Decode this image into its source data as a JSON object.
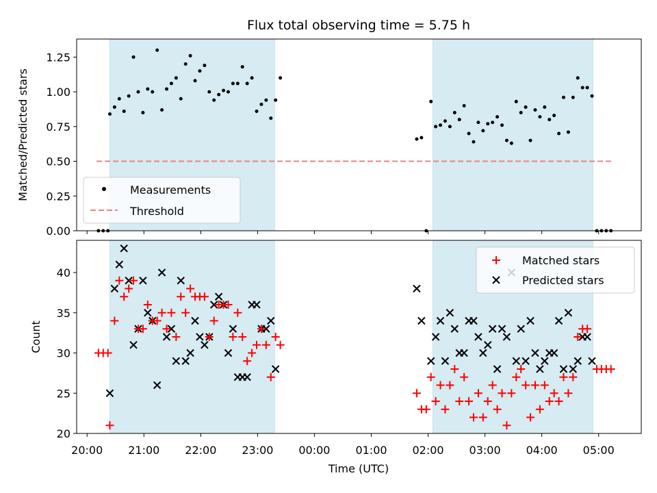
{
  "chart_data": [
    {
      "type": "scatter",
      "title": "Flux total observing time = 5.75 h",
      "xlabel": "",
      "ylabel": "Matched/Predicted stars",
      "xlim": [
        "19:49",
        "05:45"
      ],
      "ylim": [
        0,
        1.38
      ],
      "yticks": [
        "0.00",
        "0.25",
        "0.50",
        "0.75",
        "1.00",
        "1.25"
      ],
      "shaded_spans": [
        [
          "20:24",
          "23:18"
        ],
        [
          "02:05",
          "04:54"
        ]
      ],
      "threshold": {
        "y": 0.5,
        "x_start": "20:10",
        "x_end": "05:15",
        "color": "#f08080"
      },
      "legend": {
        "position": "lower-left",
        "entries": [
          "Measurements",
          "Threshold"
        ]
      },
      "series": [
        {
          "name": "Measurements",
          "color": "#000000",
          "points": [
            [
              "20:12",
              0
            ],
            [
              "20:17",
              0
            ],
            [
              "20:22",
              0
            ],
            [
              "20:24",
              0.84
            ],
            [
              "20:29",
              0.89
            ],
            [
              "20:34",
              0.95
            ],
            [
              "20:39",
              0.86
            ],
            [
              "20:44",
              0.97
            ],
            [
              "20:49",
              1.25
            ],
            [
              "20:54",
              1.0
            ],
            [
              "20:59",
              0.85
            ],
            [
              "21:04",
              1.02
            ],
            [
              "21:09",
              1.0
            ],
            [
              "21:14",
              1.3
            ],
            [
              "21:19",
              0.87
            ],
            [
              "21:24",
              1.02
            ],
            [
              "21:29",
              1.06
            ],
            [
              "21:34",
              1.1
            ],
            [
              "21:39",
              0.95
            ],
            [
              "21:44",
              1.2
            ],
            [
              "21:49",
              1.26
            ],
            [
              "21:54",
              1.08
            ],
            [
              "21:59",
              1.15
            ],
            [
              "22:04",
              1.19
            ],
            [
              "22:09",
              1.0
            ],
            [
              "22:14",
              0.94
            ],
            [
              "22:19",
              0.98
            ],
            [
              "22:24",
              1.01
            ],
            [
              "22:29",
              1.0
            ],
            [
              "22:34",
              1.06
            ],
            [
              "22:39",
              1.06
            ],
            [
              "22:44",
              1.18
            ],
            [
              "22:49",
              1.06
            ],
            [
              "22:54",
              1.1
            ],
            [
              "22:59",
              0.86
            ],
            [
              "23:04",
              0.91
            ],
            [
              "23:09",
              0.94
            ],
            [
              "23:14",
              0.81
            ],
            [
              "23:19",
              0.94
            ],
            [
              "23:24",
              1.1
            ],
            [
              "01:48",
              0.66
            ],
            [
              "01:53",
              0.67
            ],
            [
              "01:58",
              0
            ],
            [
              "02:03",
              0.93
            ],
            [
              "02:08",
              0.75
            ],
            [
              "02:13",
              0.76
            ],
            [
              "02:18",
              0.79
            ],
            [
              "02:23",
              0.75
            ],
            [
              "02:28",
              0.85
            ],
            [
              "02:33",
              0.8
            ],
            [
              "02:38",
              0.9
            ],
            [
              "02:43",
              0.7
            ],
            [
              "02:48",
              0.64
            ],
            [
              "02:53",
              0.78
            ],
            [
              "02:58",
              0.72
            ],
            [
              "03:03",
              0.77
            ],
            [
              "03:08",
              0.78
            ],
            [
              "03:13",
              0.82
            ],
            [
              "03:18",
              0.76
            ],
            [
              "03:23",
              0.65
            ],
            [
              "03:28",
              0.63
            ],
            [
              "03:33",
              0.93
            ],
            [
              "03:38",
              0.85
            ],
            [
              "03:43",
              0.89
            ],
            [
              "03:48",
              0.65
            ],
            [
              "03:53",
              0.87
            ],
            [
              "03:58",
              0.82
            ],
            [
              "04:03",
              0.89
            ],
            [
              "04:08",
              0.8
            ],
            [
              "04:13",
              0.83
            ],
            [
              "04:18",
              0.7
            ],
            [
              "04:23",
              0.96
            ],
            [
              "04:28",
              0.71
            ],
            [
              "04:33",
              0.96
            ],
            [
              "04:38",
              1.1
            ],
            [
              "04:43",
              1.03
            ],
            [
              "04:48",
              1.03
            ],
            [
              "04:53",
              0.97
            ],
            [
              "04:58",
              0
            ],
            [
              "05:03",
              0
            ],
            [
              "05:08",
              0
            ],
            [
              "05:13",
              0
            ]
          ]
        }
      ]
    },
    {
      "type": "scatter",
      "title": "",
      "xlabel": "Time (UTC)",
      "ylabel": "Count",
      "xlim": [
        "19:49",
        "05:45"
      ],
      "ylim": [
        20,
        44
      ],
      "yticks": [
        "20",
        "25",
        "30",
        "35",
        "40"
      ],
      "xticks": [
        "20:00",
        "21:00",
        "22:00",
        "23:00",
        "00:00",
        "01:00",
        "02:00",
        "03:00",
        "04:00",
        "05:00"
      ],
      "shaded_spans": [
        [
          "20:24",
          "23:18"
        ],
        [
          "02:05",
          "04:54"
        ]
      ],
      "legend": {
        "position": "top-right",
        "entries": [
          "Matched stars",
          "Predicted stars"
        ]
      },
      "series": [
        {
          "name": "Matched stars",
          "marker": "+",
          "color": "#ff0000",
          "points": [
            [
              "20:12",
              30
            ],
            [
              "20:17",
              30
            ],
            [
              "20:22",
              30
            ],
            [
              "20:24",
              21
            ],
            [
              "20:29",
              34
            ],
            [
              "20:34",
              39
            ],
            [
              "20:39",
              37
            ],
            [
              "20:44",
              38
            ],
            [
              "20:49",
              39
            ],
            [
              "20:54",
              33
            ],
            [
              "20:59",
              33
            ],
            [
              "21:04",
              36
            ],
            [
              "21:09",
              34
            ],
            [
              "21:14",
              34
            ],
            [
              "21:19",
              35
            ],
            [
              "21:24",
              33
            ],
            [
              "21:29",
              35
            ],
            [
              "21:34",
              32
            ],
            [
              "21:39",
              37
            ],
            [
              "21:44",
              35
            ],
            [
              "21:49",
              38
            ],
            [
              "21:54",
              37
            ],
            [
              "21:59",
              37
            ],
            [
              "22:04",
              37
            ],
            [
              "22:09",
              32
            ],
            [
              "22:14",
              34
            ],
            [
              "22:19",
              36
            ],
            [
              "22:24",
              36
            ],
            [
              "22:29",
              36
            ],
            [
              "22:34",
              32
            ],
            [
              "22:39",
              35
            ],
            [
              "22:44",
              32
            ],
            [
              "22:49",
              29
            ],
            [
              "22:54",
              30
            ],
            [
              "22:59",
              31
            ],
            [
              "23:04",
              33
            ],
            [
              "23:09",
              31
            ],
            [
              "23:14",
              27
            ],
            [
              "23:19",
              32
            ],
            [
              "23:24",
              31
            ],
            [
              "01:48",
              25
            ],
            [
              "01:53",
              23
            ],
            [
              "01:58",
              23
            ],
            [
              "02:03",
              27
            ],
            [
              "02:08",
              24
            ],
            [
              "02:13",
              26
            ],
            [
              "02:18",
              23
            ],
            [
              "02:23",
              26
            ],
            [
              "02:28",
              28
            ],
            [
              "02:33",
              24
            ],
            [
              "02:38",
              27
            ],
            [
              "02:43",
              24
            ],
            [
              "02:48",
              22
            ],
            [
              "02:53",
              25
            ],
            [
              "02:58",
              22
            ],
            [
              "03:03",
              24
            ],
            [
              "03:08",
              26
            ],
            [
              "03:13",
              23
            ],
            [
              "03:18",
              25
            ],
            [
              "03:23",
              21
            ],
            [
              "03:28",
              25
            ],
            [
              "03:33",
              27
            ],
            [
              "03:38",
              28
            ],
            [
              "03:43",
              26
            ],
            [
              "03:48",
              22
            ],
            [
              "03:53",
              26
            ],
            [
              "03:58",
              23
            ],
            [
              "04:03",
              26
            ],
            [
              "04:08",
              24
            ],
            [
              "04:13",
              25
            ],
            [
              "04:18",
              24
            ],
            [
              "04:23",
              27
            ],
            [
              "04:28",
              25
            ],
            [
              "04:33",
              27
            ],
            [
              "04:38",
              32
            ],
            [
              "04:43",
              33
            ],
            [
              "04:48",
              33
            ],
            [
              "04:58",
              28
            ],
            [
              "05:03",
              28
            ],
            [
              "05:08",
              28
            ],
            [
              "05:13",
              28
            ]
          ]
        },
        {
          "name": "Predicted stars",
          "marker": "x",
          "color": "#000000",
          "points": [
            [
              "20:24",
              25
            ],
            [
              "20:29",
              38
            ],
            [
              "20:34",
              41
            ],
            [
              "20:39",
              43
            ],
            [
              "20:44",
              39
            ],
            [
              "20:49",
              31
            ],
            [
              "20:54",
              33
            ],
            [
              "20:59",
              39
            ],
            [
              "21:04",
              35
            ],
            [
              "21:09",
              34
            ],
            [
              "21:14",
              26
            ],
            [
              "21:19",
              40
            ],
            [
              "21:24",
              32
            ],
            [
              "21:29",
              33
            ],
            [
              "21:34",
              29
            ],
            [
              "21:39",
              39
            ],
            [
              "21:44",
              29
            ],
            [
              "21:49",
              30
            ],
            [
              "21:54",
              34
            ],
            [
              "21:59",
              32
            ],
            [
              "22:04",
              31
            ],
            [
              "22:09",
              32
            ],
            [
              "22:14",
              36
            ],
            [
              "22:19",
              37
            ],
            [
              "22:24",
              36
            ],
            [
              "22:29",
              30
            ],
            [
              "22:34",
              33
            ],
            [
              "22:39",
              27
            ],
            [
              "22:44",
              27
            ],
            [
              "22:49",
              27
            ],
            [
              "22:54",
              36
            ],
            [
              "22:59",
              36
            ],
            [
              "23:04",
              33
            ],
            [
              "23:09",
              33
            ],
            [
              "23:14",
              34
            ],
            [
              "23:19",
              28
            ],
            [
              "01:48",
              38
            ],
            [
              "01:53",
              34
            ],
            [
              "02:03",
              29
            ],
            [
              "02:08",
              32
            ],
            [
              "02:13",
              34
            ],
            [
              "02:18",
              29
            ],
            [
              "02:23",
              35
            ],
            [
              "02:28",
              33
            ],
            [
              "02:33",
              30
            ],
            [
              "02:38",
              30
            ],
            [
              "02:43",
              34
            ],
            [
              "02:48",
              34
            ],
            [
              "02:53",
              32
            ],
            [
              "02:58",
              30
            ],
            [
              "03:03",
              31
            ],
            [
              "03:08",
              33
            ],
            [
              "03:13",
              28
            ],
            [
              "03:18",
              33
            ],
            [
              "03:23",
              32
            ],
            [
              "03:28",
              40
            ],
            [
              "03:33",
              29
            ],
            [
              "03:38",
              33
            ],
            [
              "03:43",
              29
            ],
            [
              "03:48",
              34
            ],
            [
              "03:53",
              30
            ],
            [
              "03:58",
              28
            ],
            [
              "04:03",
              29
            ],
            [
              "04:08",
              30
            ],
            [
              "04:13",
              30
            ],
            [
              "04:18",
              34
            ],
            [
              "04:23",
              28
            ],
            [
              "04:28",
              35
            ],
            [
              "04:33",
              28
            ],
            [
              "04:38",
              29
            ],
            [
              "04:43",
              32
            ],
            [
              "04:48",
              32
            ],
            [
              "04:53",
              29
            ]
          ]
        }
      ]
    }
  ]
}
